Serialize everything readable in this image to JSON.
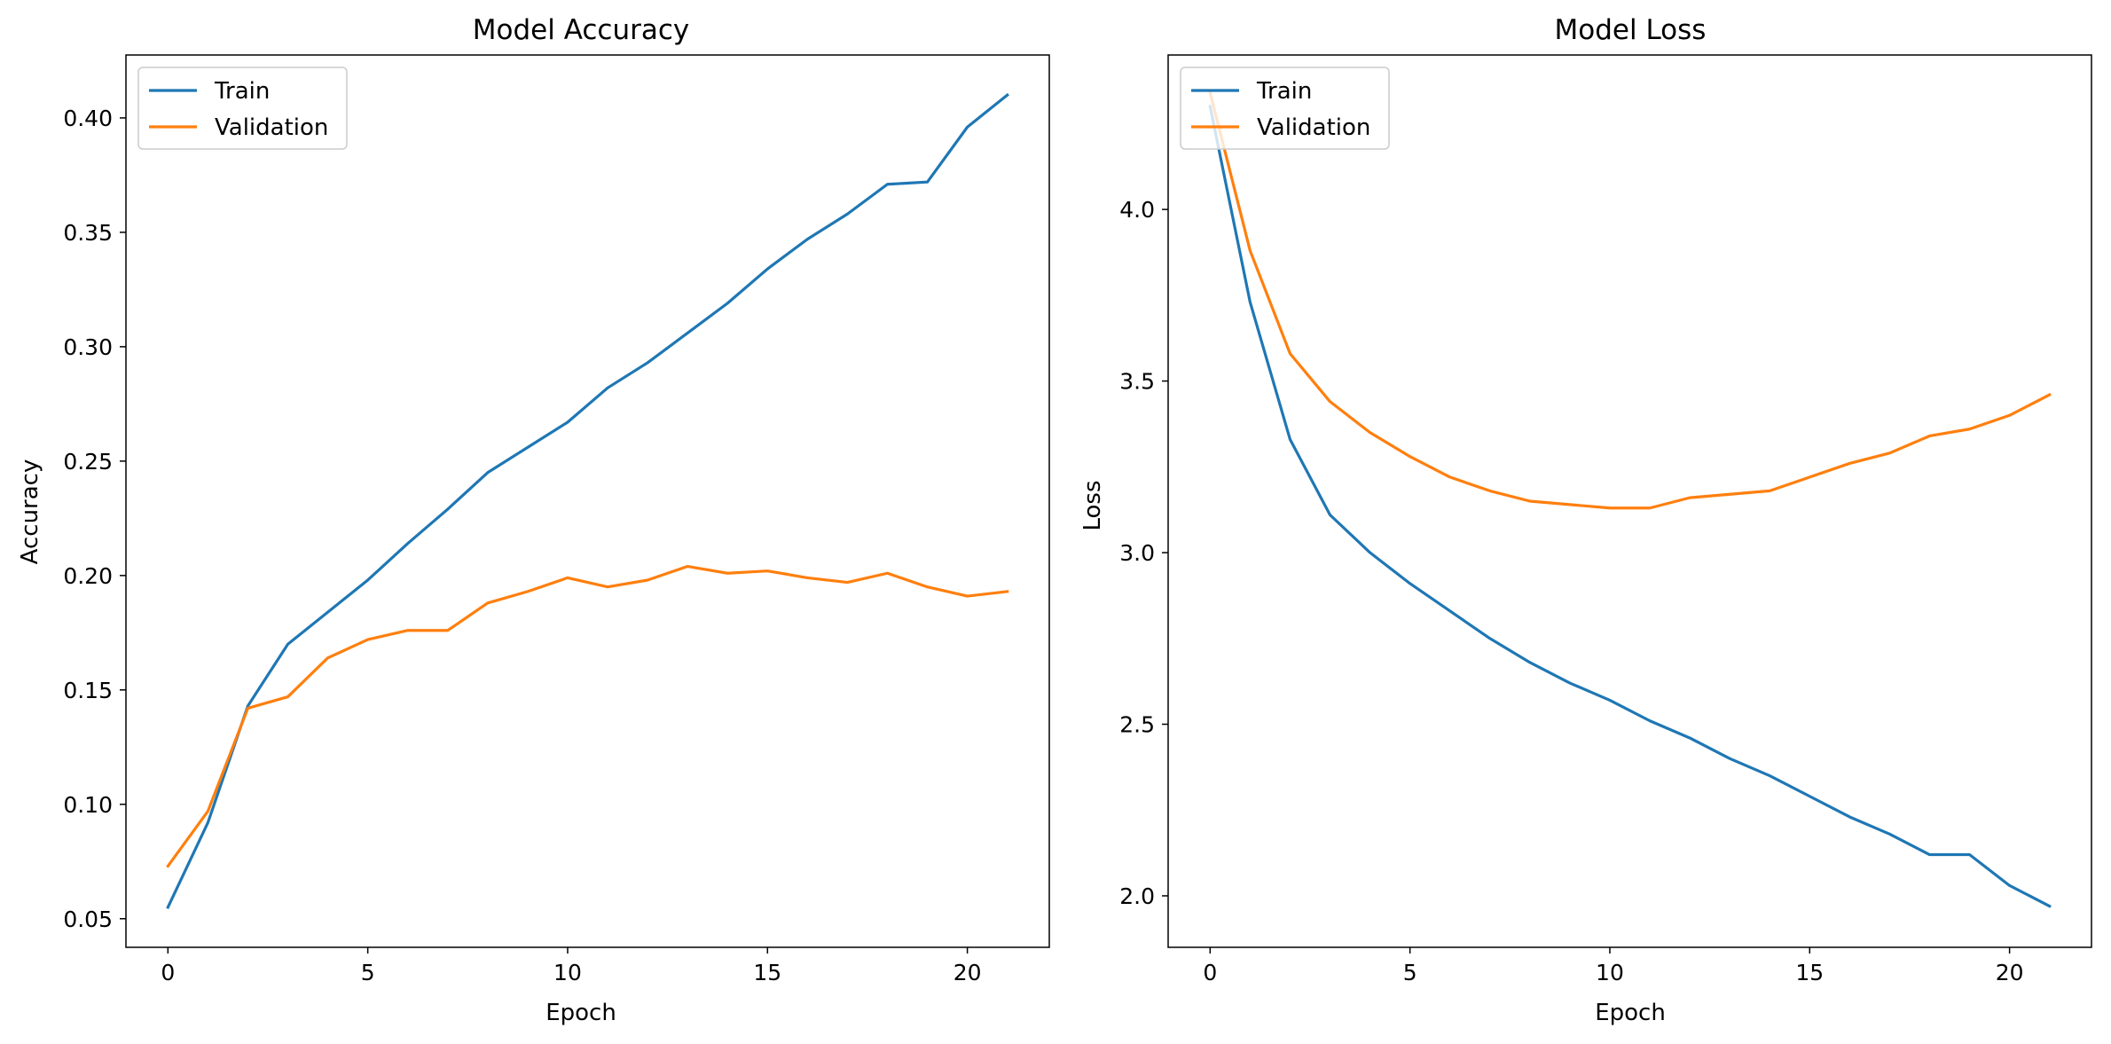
{
  "chart_data": [
    {
      "type": "line",
      "title": "Model Accuracy",
      "xlabel": "Epoch",
      "ylabel": "Accuracy",
      "xlim": [
        -1.05,
        22.05
      ],
      "ylim": [
        0.0375,
        0.4275
      ],
      "xticks": [
        0,
        5,
        10,
        15,
        20
      ],
      "yticks": [
        0.05,
        0.1,
        0.15,
        0.2,
        0.25,
        0.3,
        0.35,
        0.4
      ],
      "ytick_labels": [
        "0.05",
        "0.10",
        "0.15",
        "0.20",
        "0.25",
        "0.30",
        "0.35",
        "0.40"
      ],
      "legend": "top-left",
      "grid": false,
      "x": [
        0,
        1,
        2,
        3,
        4,
        5,
        6,
        7,
        8,
        9,
        10,
        11,
        12,
        13,
        14,
        15,
        16,
        17,
        18,
        19,
        20,
        21
      ],
      "series": [
        {
          "name": "Train",
          "color": "#1f77b4",
          "values": [
            0.055,
            0.092,
            0.143,
            0.17,
            0.184,
            0.198,
            0.214,
            0.229,
            0.245,
            0.256,
            0.267,
            0.282,
            0.293,
            0.306,
            0.319,
            0.334,
            0.347,
            0.358,
            0.371,
            0.372,
            0.396,
            0.41
          ]
        },
        {
          "name": "Validation",
          "color": "#ff7f0e",
          "values": [
            0.073,
            0.097,
            0.142,
            0.147,
            0.164,
            0.172,
            0.176,
            0.176,
            0.188,
            0.193,
            0.199,
            0.195,
            0.198,
            0.204,
            0.201,
            0.202,
            0.199,
            0.197,
            0.201,
            0.195,
            0.191,
            0.193
          ]
        }
      ]
    },
    {
      "type": "line",
      "title": "Model Loss",
      "xlabel": "Epoch",
      "ylabel": "Loss",
      "xlim": [
        -1.05,
        22.05
      ],
      "ylim": [
        1.85,
        4.45
      ],
      "xticks": [
        0,
        5,
        10,
        15,
        20
      ],
      "yticks": [
        2.0,
        2.5,
        3.0,
        3.5,
        4.0
      ],
      "ytick_labels": [
        "2.0",
        "2.5",
        "3.0",
        "3.5",
        "4.0"
      ],
      "legend": "top-left",
      "grid": false,
      "x": [
        0,
        1,
        2,
        3,
        4,
        5,
        6,
        7,
        8,
        9,
        10,
        11,
        12,
        13,
        14,
        15,
        16,
        17,
        18,
        19,
        20,
        21
      ],
      "series": [
        {
          "name": "Train",
          "color": "#1f77b4",
          "values": [
            4.3,
            3.73,
            3.33,
            3.11,
            3.0,
            2.91,
            2.83,
            2.75,
            2.68,
            2.62,
            2.57,
            2.51,
            2.46,
            2.4,
            2.35,
            2.29,
            2.23,
            2.18,
            2.12,
            2.12,
            2.03,
            1.97
          ]
        },
        {
          "name": "Validation",
          "color": "#ff7f0e",
          "values": [
            4.34,
            3.88,
            3.58,
            3.44,
            3.35,
            3.28,
            3.22,
            3.18,
            3.15,
            3.14,
            3.13,
            3.13,
            3.16,
            3.17,
            3.18,
            3.22,
            3.26,
            3.29,
            3.34,
            3.36,
            3.4,
            3.46
          ]
        }
      ]
    }
  ]
}
